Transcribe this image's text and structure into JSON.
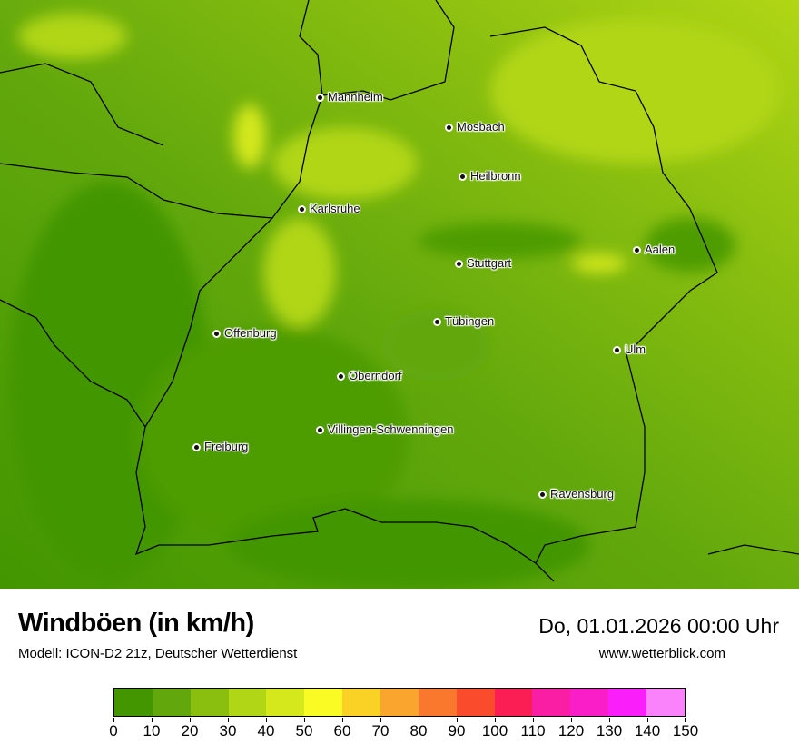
{
  "header": {
    "title": "Windböen (in km/h)",
    "subtitle": "Modell: ICON-D2 21z, Deutscher Wetterdienst",
    "datetime": "Do, 01.01.2026 00:00 Uhr",
    "website": "www.wetterblick.com"
  },
  "cities": [
    {
      "name": "Mannheim"
    },
    {
      "name": "Mosbach"
    },
    {
      "name": "Heilbronn"
    },
    {
      "name": "Karlsruhe"
    },
    {
      "name": "Aalen"
    },
    {
      "name": "Stuttgart"
    },
    {
      "name": "Tübingen"
    },
    {
      "name": "Offenburg"
    },
    {
      "name": "Ulm"
    },
    {
      "name": "Oberndorf"
    },
    {
      "name": "Villingen-Schwenningen"
    },
    {
      "name": "Freiburg"
    },
    {
      "name": "Ravensburg"
    }
  ],
  "legend": {
    "unit": "km/h",
    "ticks": [
      "0",
      "10",
      "20",
      "30",
      "40",
      "50",
      "60",
      "70",
      "80",
      "90",
      "100",
      "110",
      "120",
      "130",
      "140",
      "150"
    ],
    "colors": [
      "#439600",
      "#62a80c",
      "#8abf10",
      "#b1d615",
      "#d4e81b",
      "#fafa25",
      "#fad125",
      "#faa52d",
      "#fa782d",
      "#fa4b2d",
      "#fa1e55",
      "#fa1ea5",
      "#fa1ec8",
      "#fa1efa",
      "#fa82fa"
    ]
  }
}
